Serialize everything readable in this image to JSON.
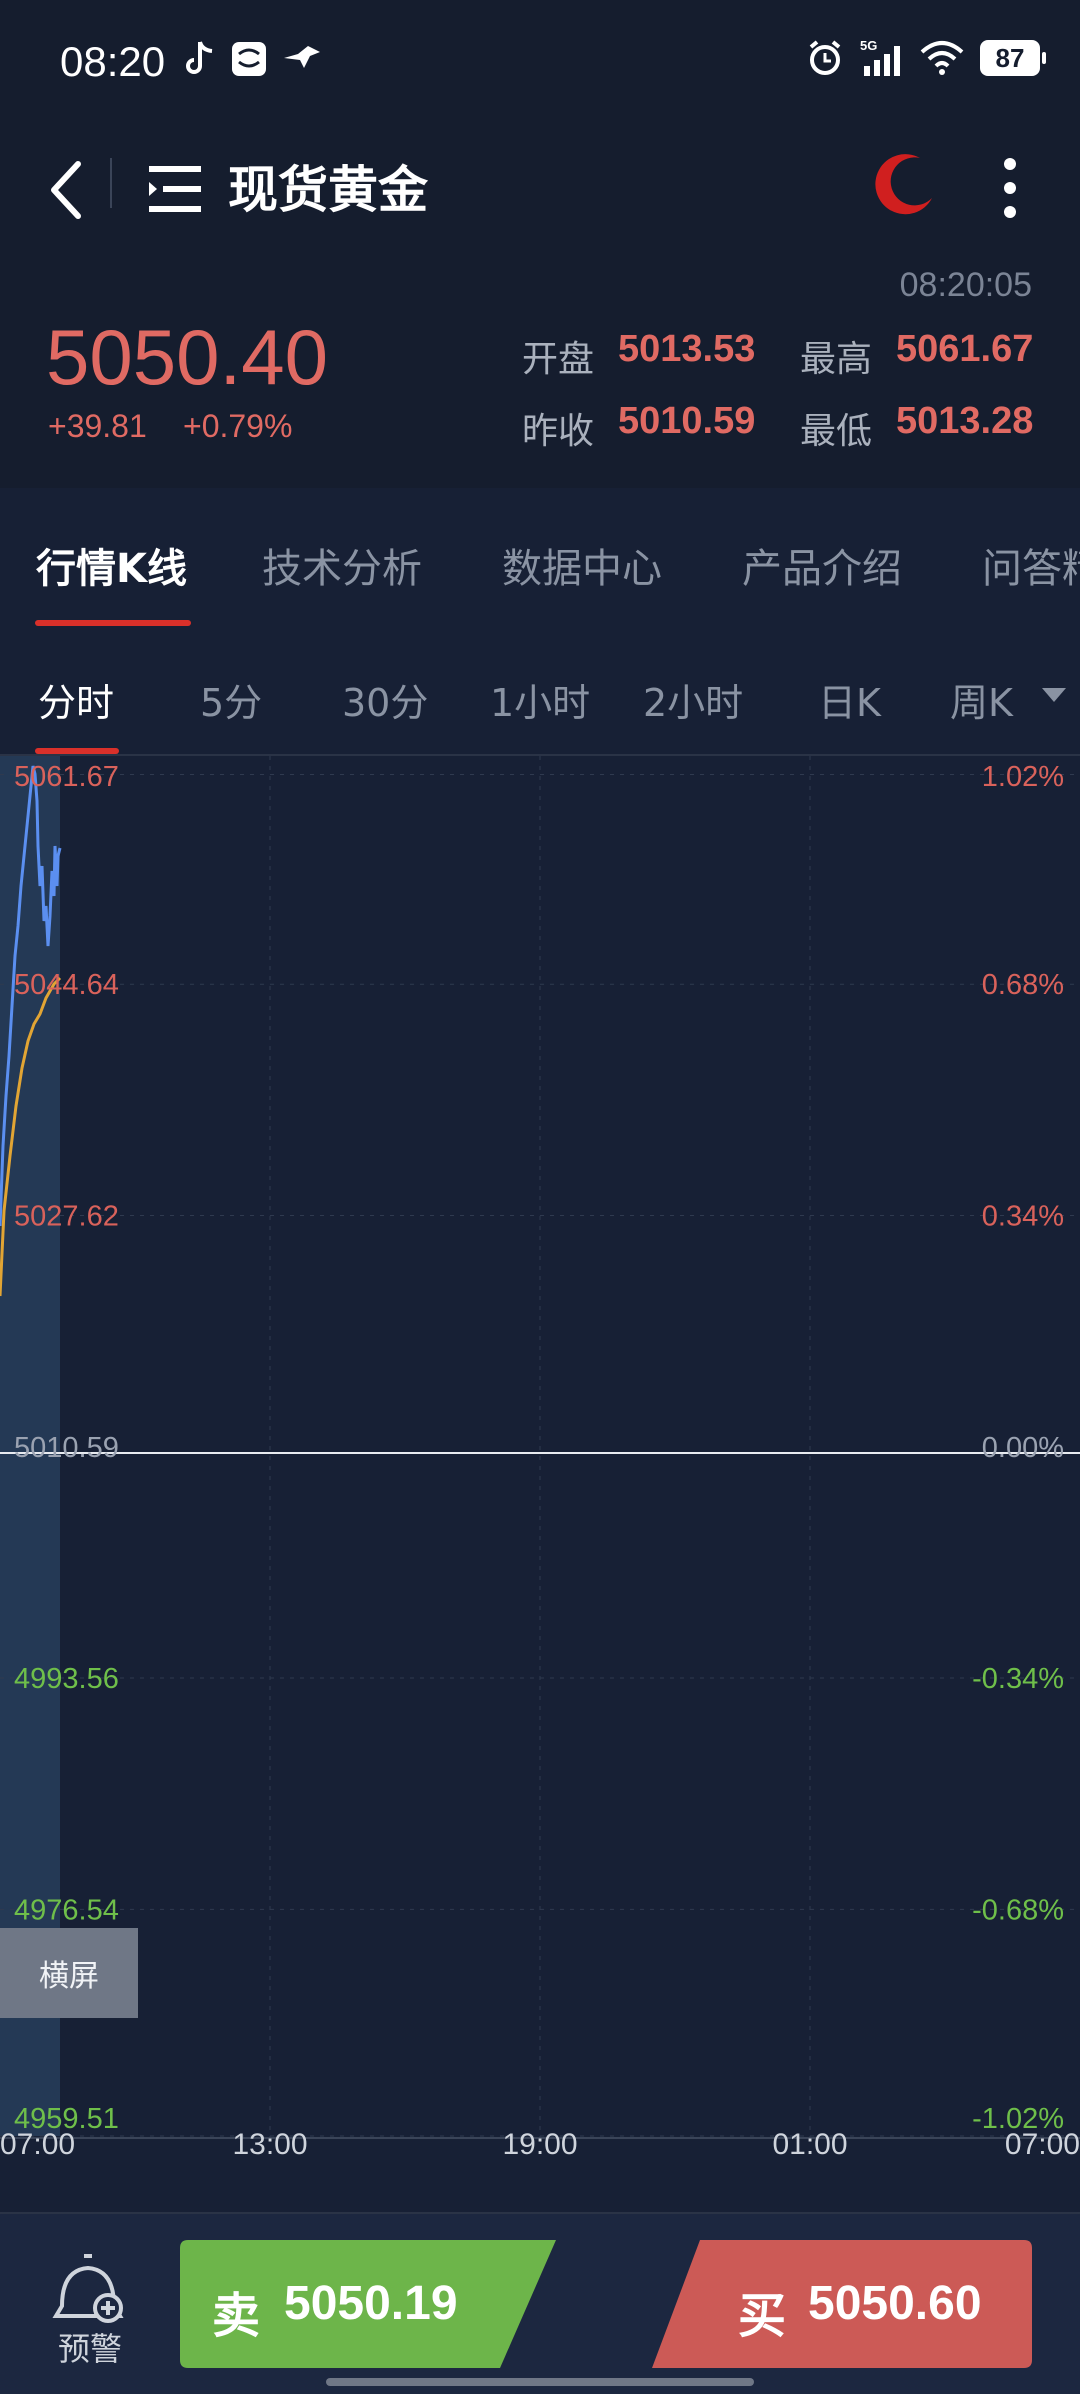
{
  "status_bar": {
    "time": "08:20",
    "network": "5G",
    "battery": "87"
  },
  "header": {
    "title": "现货黄金",
    "night_icon": "moon-icon",
    "back_icon": "chevron-left-icon",
    "menu_icon": "list-icon",
    "more_icon": "more-vertical-icon"
  },
  "quote": {
    "time": "08:20:05",
    "price": "5050.40",
    "change": "+39.81",
    "change_pct": "+0.79%",
    "open_label": "开盘",
    "open": "5013.53",
    "high_label": "最高",
    "high": "5061.67",
    "prev_close_label": "昨收",
    "prev_close": "5010.59",
    "low_label": "最低",
    "low": "5013.28"
  },
  "tabs": [
    "行情K线",
    "技术分析",
    "数据中心",
    "产品介绍",
    "问答精"
  ],
  "periods": [
    "分时",
    "5分",
    "30分",
    "1小时",
    "2小时",
    "日K",
    "周K"
  ],
  "chart_data": {
    "type": "line",
    "y_left_ticks": [
      "5061.67",
      "5044.64",
      "5027.62",
      "5010.59",
      "4993.56",
      "4976.54",
      "4959.51"
    ],
    "y_right_ticks": [
      "1.02%",
      "0.68%",
      "0.34%",
      "0.00%",
      "-0.34%",
      "-0.68%",
      "-1.02%"
    ],
    "x_ticks": [
      "07:00",
      "13:00",
      "19:00",
      "01:00",
      "07:00"
    ],
    "ylim": [
      4959.51,
      5061.67
    ],
    "baseline": 5010.59,
    "colors": {
      "up": "#d9625b",
      "down": "#6fbf4a",
      "price": "#5b8ff0",
      "avg": "#e2a534"
    },
    "series": []
  },
  "rotate_button": "横屏",
  "bottom": {
    "alert_label": "预警",
    "sell_label": "卖",
    "sell_price": "5050.19",
    "buy_label": "买",
    "buy_price": "5050.60",
    "sell_color": "#6db54a",
    "buy_color": "#cc5a56"
  }
}
